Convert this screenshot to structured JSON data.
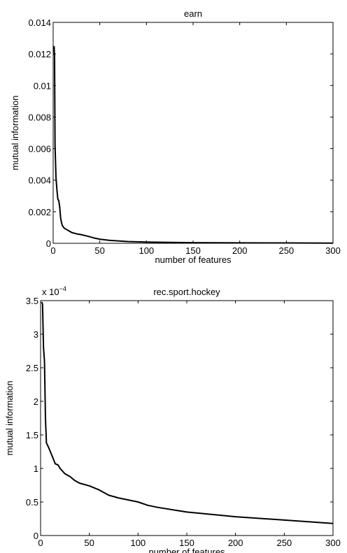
{
  "chart_data": [
    {
      "type": "line",
      "title": "earn",
      "xlabel": "number of features",
      "ylabel": "mutual information",
      "xlim": [
        0,
        300
      ],
      "ylim": [
        0,
        0.014
      ],
      "xticks": [
        0,
        50,
        100,
        150,
        200,
        250,
        300
      ],
      "xtick_labels": [
        "0",
        "50",
        "100",
        "150",
        "200",
        "250",
        "300"
      ],
      "yticks": [
        0,
        0.002,
        0.004,
        0.006,
        0.008,
        0.01,
        0.012,
        0.014
      ],
      "ytick_labels": [
        "0",
        "0.002",
        "0.004",
        "0.006",
        "0.008",
        "0.01",
        "0.012",
        "0.014"
      ],
      "multiplier": "",
      "multiplier_exp": "",
      "grid": false,
      "series": [
        {
          "color": "#000000",
          "x": [
            1,
            1.5,
            2,
            3,
            4,
            5,
            6,
            7,
            8,
            9,
            10,
            12,
            15,
            18,
            20,
            25,
            30,
            35,
            40,
            45,
            50,
            60,
            70,
            80,
            100,
            120,
            150,
            200,
            250,
            300
          ],
          "y": [
            0.0125,
            0.0118,
            0.0062,
            0.0042,
            0.0034,
            0.0028,
            0.0027,
            0.0023,
            0.0016,
            0.0013,
            0.0011,
            0.00095,
            0.00085,
            0.00075,
            0.00068,
            0.0006,
            0.00055,
            0.00048,
            0.0004,
            0.00032,
            0.00026,
            0.00019,
            0.00015,
            0.00011,
            8e-05,
            6e-05,
            4e-05,
            3e-05,
            2e-05,
            1e-05
          ]
        }
      ]
    },
    {
      "type": "line",
      "title": "rec.sport.hockey",
      "xlabel": "number of features",
      "ylabel": "mutual information",
      "xlim": [
        0,
        300
      ],
      "ylim": [
        0,
        3.5
      ],
      "xticks": [
        0,
        50,
        100,
        150,
        200,
        250,
        300
      ],
      "xtick_labels": [
        "0",
        "50",
        "100",
        "150",
        "200",
        "250",
        "300"
      ],
      "yticks": [
        0,
        0.5,
        1,
        1.5,
        2,
        2.5,
        3,
        3.5
      ],
      "ytick_labels": [
        "0",
        "0.5",
        "1",
        "1.5",
        "2",
        "2.5",
        "3",
        "3.5"
      ],
      "multiplier": "x 10",
      "multiplier_exp": "−4",
      "grid": false,
      "series": [
        {
          "color": "#000000",
          "x": [
            1,
            2,
            3,
            4,
            5,
            6,
            7,
            8,
            10,
            12,
            15,
            18,
            20,
            25,
            30,
            35,
            40,
            50,
            60,
            70,
            80,
            100,
            110,
            120,
            150,
            200,
            250,
            300
          ],
          "y": [
            3.48,
            3.45,
            2.8,
            2.6,
            1.75,
            1.38,
            1.35,
            1.32,
            1.25,
            1.18,
            1.07,
            1.05,
            1.0,
            0.92,
            0.88,
            0.82,
            0.78,
            0.74,
            0.68,
            0.6,
            0.56,
            0.5,
            0.45,
            0.42,
            0.35,
            0.28,
            0.23,
            0.18
          ]
        }
      ]
    }
  ]
}
